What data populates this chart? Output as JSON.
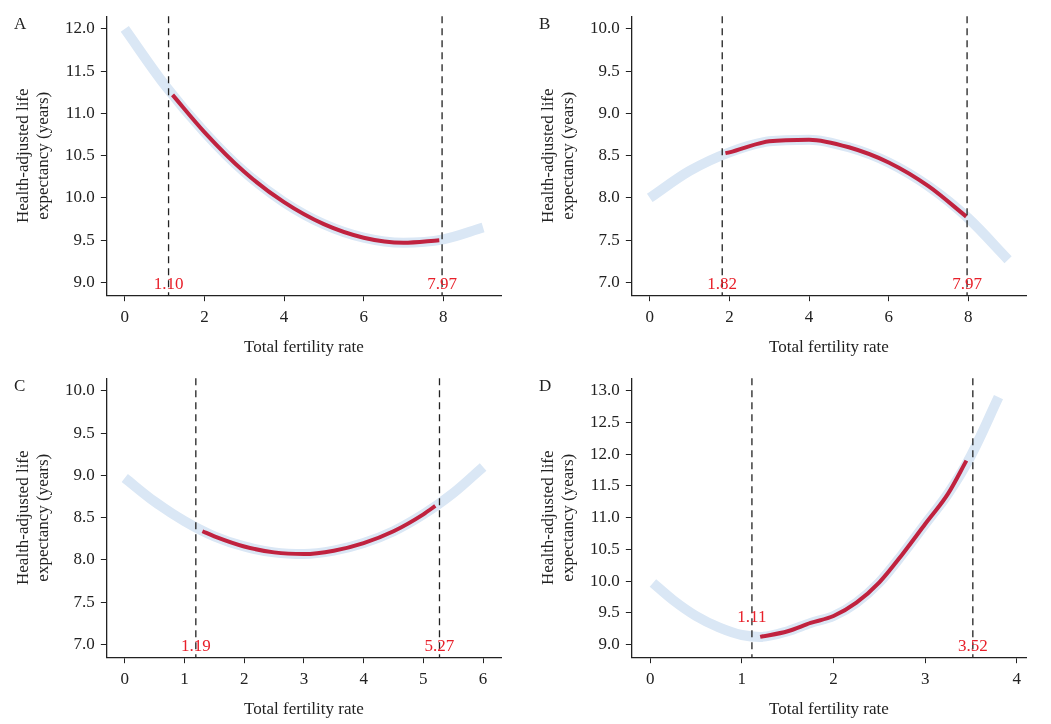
{
  "chart_data": [
    {
      "type": "line",
      "title": "A",
      "xlabel": "Total fertility rate",
      "ylabel": "Health-adjusted life expectancy (years)",
      "xlim": [
        -0.45,
        9.45
      ],
      "xticks": [
        0,
        2,
        4,
        6,
        8
      ],
      "ylim": [
        8.85,
        12.15
      ],
      "yticks": [
        {
          "value": 9,
          "label": "9.0"
        },
        {
          "value": 9.5,
          "label": "9.5"
        },
        {
          "value": 10,
          "label": "10.0"
        },
        {
          "value": 10.5,
          "label": "10.5"
        },
        {
          "value": 11,
          "label": "11.0"
        },
        {
          "value": 11.5,
          "label": "11.5"
        },
        {
          "value": 12,
          "label": "12.0"
        }
      ],
      "series": [
        {
          "color": "#dae7f5",
          "x": [
            0,
            1,
            2,
            3,
            4,
            5,
            6,
            7,
            8,
            9
          ],
          "values": [
            12.0,
            11.34,
            10.78,
            10.31,
            9.95,
            9.69,
            9.53,
            9.47,
            9.51,
            9.65
          ]
        },
        {
          "color": "#c0223f",
          "x": [
            1.2,
            2,
            3,
            4,
            5,
            6,
            7,
            7.9
          ],
          "values": [
            11.22,
            10.78,
            10.31,
            9.95,
            9.69,
            9.53,
            9.47,
            9.5
          ]
        }
      ],
      "ref_lines": [
        {
          "axis": "x",
          "value": 1.1,
          "label": "1.10",
          "line_style": "dashed"
        },
        {
          "axis": "x",
          "value": 7.97,
          "label": "7.97",
          "line_style": "dashed"
        }
      ],
      "legend": false
    },
    {
      "type": "line",
      "title": "B",
      "xlabel": "Total fertility rate",
      "ylabel": "Health-adjusted life expectancy (years)",
      "xlim": [
        -0.45,
        9.45
      ],
      "xticks": [
        0,
        2,
        4,
        6,
        8
      ],
      "ylim": [
        6.85,
        10.15
      ],
      "yticks": [
        {
          "value": 7,
          "label": "7.0"
        },
        {
          "value": 7.5,
          "label": "7.5"
        },
        {
          "value": 8,
          "label": "8.0"
        },
        {
          "value": 8.5,
          "label": "8.5"
        },
        {
          "value": 9,
          "label": "9.0"
        },
        {
          "value": 9.5,
          "label": "9.5"
        },
        {
          "value": 10,
          "label": "10.0"
        }
      ],
      "series": [
        {
          "color": "#dae7f5",
          "x": [
            0,
            1,
            2,
            3,
            4,
            5,
            6,
            7,
            8,
            9
          ],
          "values": [
            8.0,
            8.32,
            8.54,
            8.67,
            8.69,
            8.6,
            8.42,
            8.14,
            7.76,
            7.27
          ]
        },
        {
          "color": "#c0223f",
          "x": [
            1.9,
            2,
            3,
            4,
            5,
            6,
            7,
            7.95
          ],
          "values": [
            8.53,
            8.54,
            8.67,
            8.69,
            8.6,
            8.42,
            8.14,
            7.78
          ]
        }
      ],
      "ref_lines": [
        {
          "axis": "x",
          "value": 1.82,
          "label": "1.82",
          "line_style": "dashed"
        },
        {
          "axis": "x",
          "value": 7.97,
          "label": "7.97",
          "line_style": "dashed"
        }
      ],
      "legend": false
    },
    {
      "type": "line",
      "title": "C",
      "xlabel": "Total fertility rate",
      "ylabel": "Health-adjusted life expectancy (years)",
      "xlim": [
        -0.3,
        6.3
      ],
      "xticks": [
        0,
        1,
        2,
        3,
        4,
        5,
        6
      ],
      "ylim": [
        6.85,
        10.15
      ],
      "yticks": [
        {
          "value": 7,
          "label": "7.0"
        },
        {
          "value": 7.5,
          "label": "7.5"
        },
        {
          "value": 8,
          "label": "8.0"
        },
        {
          "value": 8.5,
          "label": "8.5"
        },
        {
          "value": 9,
          "label": "9.0"
        },
        {
          "value": 9.5,
          "label": "9.5"
        },
        {
          "value": 10,
          "label": "10.0"
        }
      ],
      "series": [
        {
          "color": "#dae7f5",
          "x": [
            0,
            0.5,
            1,
            1.5,
            2,
            2.5,
            3,
            3.5,
            4,
            4.5,
            5,
            5.5,
            6
          ],
          "values": [
            8.97,
            8.69,
            8.46,
            8.28,
            8.16,
            8.09,
            8.07,
            8.11,
            8.2,
            8.34,
            8.54,
            8.79,
            9.1
          ]
        },
        {
          "color": "#c0223f",
          "x": [
            1.3,
            1.5,
            2,
            2.5,
            3,
            3.5,
            4,
            4.5,
            5,
            5.2
          ],
          "values": [
            8.34,
            8.28,
            8.16,
            8.09,
            8.07,
            8.11,
            8.2,
            8.34,
            8.54,
            8.64
          ]
        }
      ],
      "ref_lines": [
        {
          "axis": "x",
          "value": 1.19,
          "label": "1.19",
          "line_style": "dashed"
        },
        {
          "axis": "x",
          "value": 5.27,
          "label": "5.27",
          "line_style": "dashed"
        }
      ],
      "legend": false
    },
    {
      "type": "line",
      "title": "D",
      "xlabel": "Total fertility rate",
      "ylabel": "Health-adjusted life expectancy (years)",
      "xlim": [
        -0.2,
        4.1
      ],
      "xticks": [
        0,
        1,
        2,
        3,
        4
      ],
      "ylim": [
        8.8,
        13.2
      ],
      "yticks": [
        {
          "value": 9,
          "label": "9.0"
        },
        {
          "value": 9.5,
          "label": "9.5"
        },
        {
          "value": 10,
          "label": "10.0"
        },
        {
          "value": 10.5,
          "label": "10.5"
        },
        {
          "value": 11,
          "label": "11.0"
        },
        {
          "value": 11.5,
          "label": "11.5"
        },
        {
          "value": 12,
          "label": "12.0"
        },
        {
          "value": 12.5,
          "label": "12.5"
        },
        {
          "value": 13,
          "label": "13.0"
        }
      ],
      "series": [
        {
          "color": "#dae7f5",
          "x": [
            0.03,
            0.25,
            0.5,
            0.75,
            1,
            1.2,
            1.5,
            1.75,
            2,
            2.25,
            2.5,
            2.75,
            3,
            3.25,
            3.5,
            3.8
          ],
          "values": [
            9.97,
            9.7,
            9.45,
            9.27,
            9.15,
            9.12,
            9.21,
            9.34,
            9.45,
            9.66,
            9.98,
            10.42,
            10.9,
            11.38,
            11.98,
            12.9
          ]
        },
        {
          "color": "#c0223f",
          "x": [
            1.2,
            1.5,
            1.75,
            2,
            2.25,
            2.5,
            2.75,
            3,
            3.25,
            3.45
          ],
          "values": [
            9.12,
            9.21,
            9.34,
            9.45,
            9.66,
            9.98,
            10.42,
            10.9,
            11.38,
            11.9
          ]
        }
      ],
      "ref_lines": [
        {
          "axis": "x",
          "value": 1.11,
          "label": "1.11",
          "line_style": "dashed"
        },
        {
          "axis": "x",
          "value": 3.52,
          "label": "3.52",
          "line_style": "dashed"
        }
      ],
      "legend": false
    }
  ]
}
